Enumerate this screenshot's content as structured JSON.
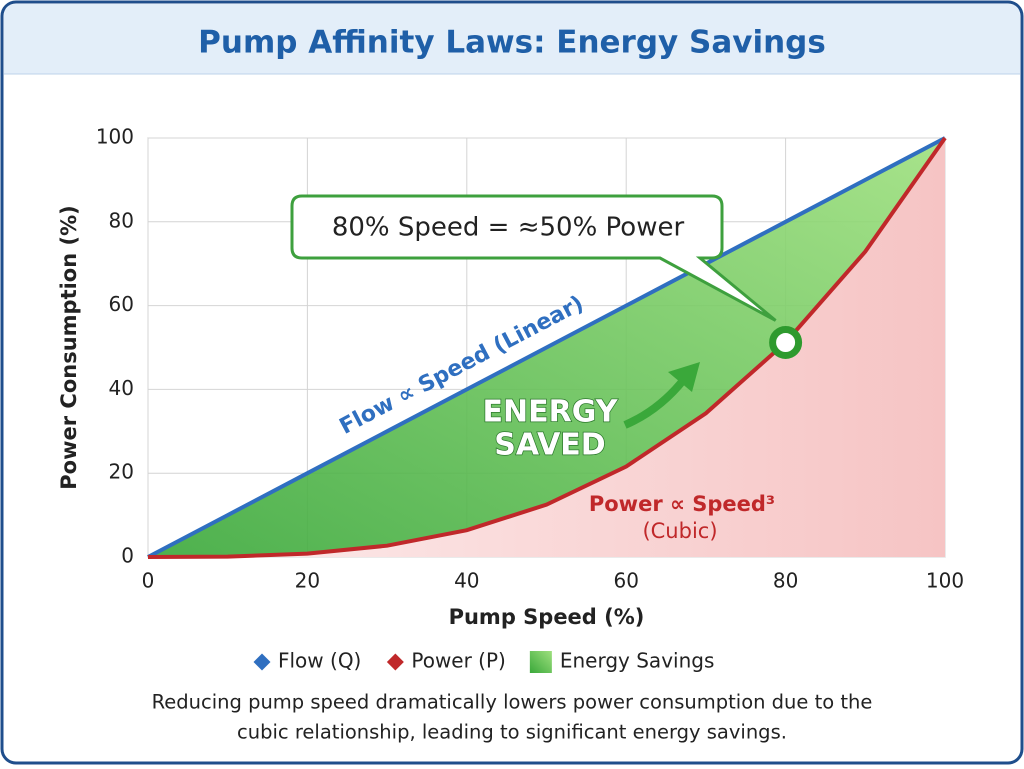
{
  "chart_data": {
    "type": "line",
    "title": "Pump Affinity Laws: Energy Savings",
    "x_label": "Pump Speed (%)",
    "y_label": "Power Consumption (%)",
    "x": [
      0,
      10,
      20,
      30,
      40,
      50,
      60,
      70,
      80,
      90,
      100
    ],
    "series": [
      {
        "name": "Flow (Q)",
        "color": "#2f6fc0",
        "values": [
          0,
          10,
          20,
          30,
          40,
          50,
          60,
          70,
          80,
          90,
          100
        ]
      },
      {
        "name": "Power (P)",
        "color": "#c0282a",
        "values": [
          0,
          0.1,
          0.8,
          2.7,
          6.4,
          12.5,
          21.6,
          34.3,
          51.2,
          72.9,
          100
        ]
      }
    ],
    "fill_between": {
      "name": "Energy Savings",
      "color": "#5cc64a"
    },
    "xlim": [
      0,
      100
    ],
    "xticks": [
      0,
      20,
      40,
      60,
      80,
      100
    ],
    "ylim": [
      0,
      100
    ],
    "yticks": [
      0,
      20,
      40,
      60,
      80,
      100
    ],
    "grid": true,
    "highlight": {
      "x": 80,
      "y": 51.2,
      "label": "80% Speed = ≈50% Power"
    },
    "annotations": [
      "Flow ∝ Speed (Linear)",
      "ENERGY",
      "SAVED",
      "Power ∝ Speed³",
      "(Cubic)"
    ],
    "caption": [
      "Reducing pump speed dramatically lowers power consumption due to the",
      "cubic relationship, leading to significant energy savings."
    ]
  }
}
